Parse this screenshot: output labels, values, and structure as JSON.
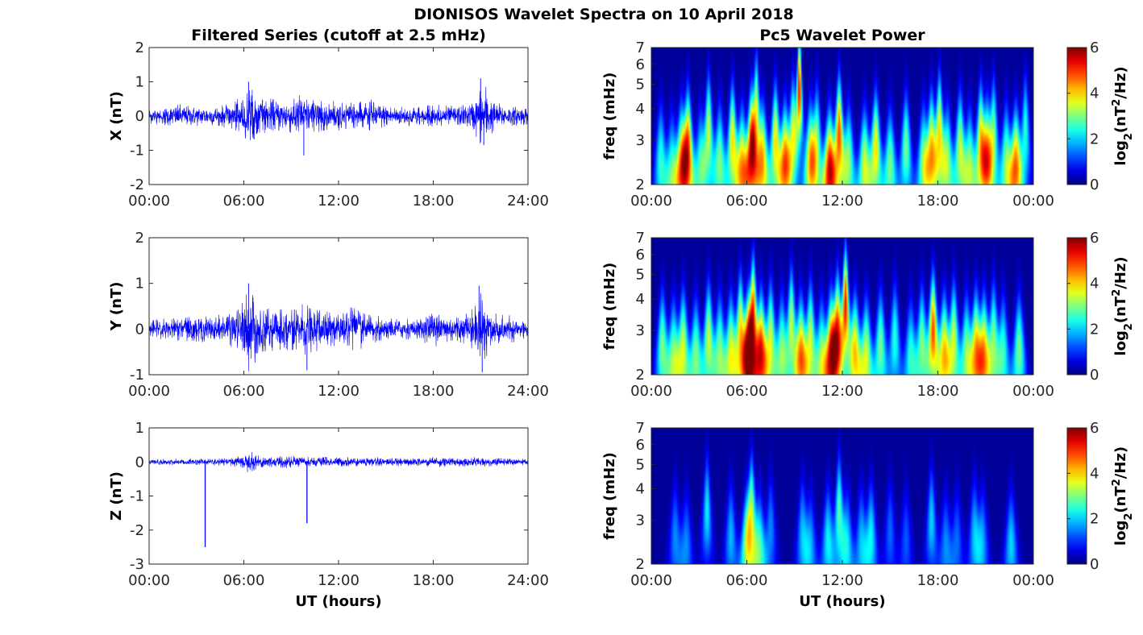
{
  "figure_title": "DIONISOS Wavelet Spectra on 10 April 2018",
  "left_column_title": "Filtered Series (cutoff at 2.5 mHz)",
  "right_column_title": "Pc5 Wavelet Power",
  "colors": {
    "series": "#0000ff",
    "axis": "#262626",
    "colormap": "jet"
  },
  "chart_data": [
    {
      "type": "line",
      "name": "x-series",
      "ylabel": "X (nT)",
      "xlabel": "",
      "x_ticks": [
        "00:00",
        "06:00",
        "12:00",
        "18:00",
        "24:00"
      ],
      "xlim_hours": [
        0,
        24
      ],
      "ylim": [
        -2,
        2
      ],
      "y_ticks": [
        -2,
        -1,
        0,
        1,
        2
      ],
      "envelope": {
        "hours": [
          0,
          1,
          2,
          3,
          4,
          5,
          5.5,
          6,
          6.3,
          7,
          8,
          9,
          9.5,
          10,
          10.5,
          11,
          12,
          13,
          14,
          15,
          16,
          17,
          18,
          19,
          20,
          20.5,
          21,
          21.3,
          21.6,
          22,
          23,
          24
        ],
        "amplitude_nT": [
          0.25,
          0.3,
          0.35,
          0.3,
          0.3,
          0.35,
          0.5,
          0.55,
          0.9,
          0.55,
          0.5,
          0.55,
          0.7,
          0.6,
          0.5,
          0.45,
          0.45,
          0.4,
          0.5,
          0.35,
          0.3,
          0.3,
          0.35,
          0.3,
          0.35,
          0.45,
          0.9,
          1.0,
          0.6,
          0.4,
          0.3,
          0.3
        ]
      },
      "peaks": [
        {
          "hour": 6.3,
          "value": 1.0
        },
        {
          "hour": 9.8,
          "value": -1.15
        },
        {
          "hour": 21.0,
          "value": 1.1
        },
        {
          "hour": 21.2,
          "value": -0.85
        }
      ]
    },
    {
      "type": "line",
      "name": "y-series",
      "ylabel": "Y (nT)",
      "xlabel": "",
      "x_ticks": [
        "00:00",
        "06:00",
        "12:00",
        "18:00",
        "24:00"
      ],
      "xlim_hours": [
        0,
        24
      ],
      "ylim": [
        -1,
        2
      ],
      "y_ticks": [
        -1,
        0,
        1,
        2
      ],
      "envelope": {
        "hours": [
          0,
          1,
          2,
          3,
          4,
          5,
          5.5,
          6,
          6.3,
          7,
          8,
          9,
          10,
          11,
          12,
          13,
          14,
          15,
          16,
          17,
          17.5,
          18,
          19,
          20,
          20.5,
          21,
          21.3,
          21.6,
          22,
          23,
          24
        ],
        "amplitude_nT": [
          0.2,
          0.25,
          0.3,
          0.3,
          0.3,
          0.35,
          0.45,
          0.65,
          0.95,
          0.6,
          0.45,
          0.5,
          0.6,
          0.45,
          0.5,
          0.5,
          0.35,
          0.25,
          0.25,
          0.25,
          0.35,
          0.4,
          0.35,
          0.35,
          0.5,
          0.9,
          0.85,
          0.55,
          0.35,
          0.3,
          0.25
        ]
      },
      "peaks": [
        {
          "hour": 6.3,
          "value": 1.0
        },
        {
          "hour": 10.0,
          "value": -0.9
        },
        {
          "hour": 20.9,
          "value": 0.95
        },
        {
          "hour": 21.1,
          "value": -0.95
        }
      ]
    },
    {
      "type": "line",
      "name": "z-series",
      "ylabel": "Z (nT)",
      "xlabel": "UT (hours)",
      "x_ticks": [
        "00:00",
        "06:00",
        "12:00",
        "18:00",
        "24:00"
      ],
      "xlim_hours": [
        0,
        24
      ],
      "ylim": [
        -3,
        1
      ],
      "y_ticks": [
        -3,
        -2,
        -1,
        0,
        1
      ],
      "envelope": {
        "hours": [
          0,
          2,
          4,
          5,
          6,
          6.3,
          7,
          9,
          10,
          12,
          14,
          16,
          18,
          20,
          21,
          22,
          24
        ],
        "amplitude_nT": [
          0.08,
          0.1,
          0.1,
          0.12,
          0.2,
          0.35,
          0.2,
          0.2,
          0.15,
          0.15,
          0.15,
          0.12,
          0.15,
          0.15,
          0.15,
          0.12,
          0.1
        ]
      },
      "spikes": [
        {
          "hour": 3.55,
          "value": -2.5
        },
        {
          "hour": 10.0,
          "value": -1.8
        }
      ]
    },
    {
      "type": "heatmap",
      "name": "x-wavelet",
      "ylabel": "freq (mHz)",
      "xlabel": "",
      "yscale": "log",
      "ylim": [
        2,
        7
      ],
      "y_ticks": [
        2,
        3,
        4,
        5,
        6,
        7
      ],
      "x_ticks": [
        "00:00",
        "06:00",
        "12:00",
        "18:00",
        "00:00"
      ],
      "colorbar": {
        "label_prefix": "log",
        "label_sub": "2",
        "label_main": "(nT",
        "label_sup": "2",
        "label_end": "/Hz)",
        "range": [
          0,
          6
        ],
        "ticks": [
          0,
          2,
          4,
          6
        ]
      },
      "bursts": [
        [
          0.6,
          2.5,
          2.5
        ],
        [
          1.3,
          2.3,
          2.5
        ],
        [
          1.9,
          2.5,
          4.0
        ],
        [
          2.3,
          2.8,
          5.0
        ],
        [
          3.1,
          2.4,
          2.5
        ],
        [
          3.6,
          3.3,
          3.5
        ],
        [
          4.3,
          2.5,
          3.0
        ],
        [
          5.1,
          3.0,
          4.0
        ],
        [
          5.7,
          2.4,
          4.0
        ],
        [
          6.3,
          2.8,
          5.5
        ],
        [
          6.6,
          4.0,
          3.5
        ],
        [
          7.0,
          2.5,
          4.0
        ],
        [
          7.8,
          3.0,
          4.0
        ],
        [
          8.4,
          2.5,
          4.5
        ],
        [
          8.9,
          3.2,
          3.5
        ],
        [
          9.3,
          4.8,
          5.5
        ],
        [
          10.0,
          2.5,
          4.0
        ],
        [
          10.4,
          3.0,
          3.0
        ],
        [
          11.2,
          2.3,
          5.5
        ],
        [
          11.8,
          3.2,
          5.0
        ],
        [
          12.4,
          2.5,
          3.0
        ],
        [
          13.4,
          2.4,
          3.5
        ],
        [
          14.1,
          2.8,
          4.0
        ],
        [
          15.0,
          2.4,
          3.0
        ],
        [
          16.0,
          2.8,
          3.0
        ],
        [
          17.1,
          2.5,
          3.0
        ],
        [
          17.6,
          2.8,
          4.0
        ],
        [
          18.1,
          3.3,
          4.0
        ],
        [
          18.6,
          2.5,
          3.0
        ],
        [
          19.4,
          2.8,
          3.5
        ],
        [
          20.0,
          2.4,
          3.0
        ],
        [
          20.7,
          3.0,
          4.0
        ],
        [
          21.1,
          2.6,
          4.0
        ],
        [
          21.5,
          3.2,
          3.0
        ],
        [
          22.3,
          2.5,
          3.0
        ],
        [
          22.9,
          2.4,
          4.5
        ],
        [
          23.5,
          3.3,
          2.5
        ]
      ]
    },
    {
      "type": "heatmap",
      "name": "y-wavelet",
      "ylabel": "freq (mHz)",
      "xlabel": "",
      "yscale": "log",
      "ylim": [
        2,
        7
      ],
      "y_ticks": [
        2,
        3,
        4,
        5,
        6,
        7
      ],
      "x_ticks": [
        "00:00",
        "06:00",
        "12:00",
        "18:00",
        "00:00"
      ],
      "colorbar": {
        "label_prefix": "log",
        "label_sub": "2",
        "label_main": "(nT",
        "label_sup": "2",
        "label_end": "/Hz)",
        "range": [
          0,
          6
        ],
        "ticks": [
          0,
          2,
          4,
          6
        ]
      },
      "bursts": [
        [
          0.7,
          2.6,
          3.0
        ],
        [
          1.4,
          2.4,
          3.0
        ],
        [
          2.0,
          2.6,
          3.5
        ],
        [
          2.8,
          2.4,
          3.0
        ],
        [
          3.6,
          2.8,
          3.5
        ],
        [
          4.3,
          2.5,
          3.0
        ],
        [
          5.0,
          2.5,
          3.5
        ],
        [
          5.6,
          3.0,
          4.0
        ],
        [
          6.1,
          2.5,
          5.5
        ],
        [
          6.4,
          3.5,
          5.0
        ],
        [
          6.9,
          2.5,
          5.0
        ],
        [
          7.5,
          2.8,
          3.5
        ],
        [
          8.2,
          2.5,
          3.0
        ],
        [
          8.8,
          3.2,
          3.5
        ],
        [
          9.4,
          2.4,
          4.5
        ],
        [
          10.0,
          2.8,
          3.5
        ],
        [
          10.7,
          2.4,
          3.0
        ],
        [
          11.3,
          2.5,
          5.0
        ],
        [
          11.7,
          3.0,
          5.0
        ],
        [
          12.2,
          3.8,
          5.5
        ],
        [
          12.8,
          2.5,
          4.0
        ],
        [
          13.5,
          2.4,
          3.5
        ],
        [
          14.4,
          2.6,
          3.0
        ],
        [
          15.3,
          2.8,
          2.5
        ],
        [
          16.3,
          2.4,
          2.5
        ],
        [
          17.0,
          2.7,
          3.0
        ],
        [
          17.7,
          3.0,
          5.0
        ],
        [
          18.4,
          2.5,
          4.0
        ],
        [
          19.0,
          2.8,
          3.5
        ],
        [
          19.8,
          2.5,
          3.0
        ],
        [
          20.4,
          2.6,
          4.0
        ],
        [
          20.9,
          2.5,
          4.0
        ],
        [
          21.5,
          2.8,
          3.0
        ],
        [
          22.1,
          2.5,
          2.5
        ],
        [
          23.1,
          2.5,
          3.0
        ]
      ]
    },
    {
      "type": "heatmap",
      "name": "z-wavelet",
      "ylabel": "freq (mHz)",
      "xlabel": "UT (hours)",
      "yscale": "log",
      "ylim": [
        2,
        7
      ],
      "y_ticks": [
        2,
        3,
        4,
        5,
        6,
        7
      ],
      "x_ticks": [
        "00:00",
        "06:00",
        "12:00",
        "18:00",
        "00:00"
      ],
      "colorbar": {
        "label_prefix": "log",
        "label_sub": "2",
        "label_main": "(nT",
        "label_sup": "2",
        "label_end": "/Hz)",
        "range": [
          0,
          6
        ],
        "ticks": [
          0,
          2,
          4,
          6
        ]
      },
      "bursts": [
        [
          1.5,
          2.6,
          1.5
        ],
        [
          2.2,
          2.4,
          1.5
        ],
        [
          3.5,
          3.3,
          2.2
        ],
        [
          5.0,
          2.6,
          1.8
        ],
        [
          6.0,
          2.4,
          2.8
        ],
        [
          6.3,
          3.3,
          3.2
        ],
        [
          6.8,
          2.3,
          2.5
        ],
        [
          7.5,
          2.8,
          1.5
        ],
        [
          9.5,
          2.7,
          1.8
        ],
        [
          10.0,
          2.4,
          1.6
        ],
        [
          11.1,
          2.5,
          2.2
        ],
        [
          11.8,
          3.3,
          2.8
        ],
        [
          12.3,
          2.4,
          2.0
        ],
        [
          13.2,
          2.5,
          1.8
        ],
        [
          13.8,
          2.6,
          2.2
        ],
        [
          15.0,
          2.7,
          1.3
        ],
        [
          16.0,
          2.5,
          1.2
        ],
        [
          17.6,
          3.0,
          2.0
        ],
        [
          18.5,
          2.4,
          1.5
        ],
        [
          19.2,
          2.5,
          1.3
        ],
        [
          20.3,
          2.7,
          1.8
        ],
        [
          20.8,
          2.5,
          1.6
        ],
        [
          22.6,
          2.4,
          2.0
        ]
      ]
    }
  ]
}
